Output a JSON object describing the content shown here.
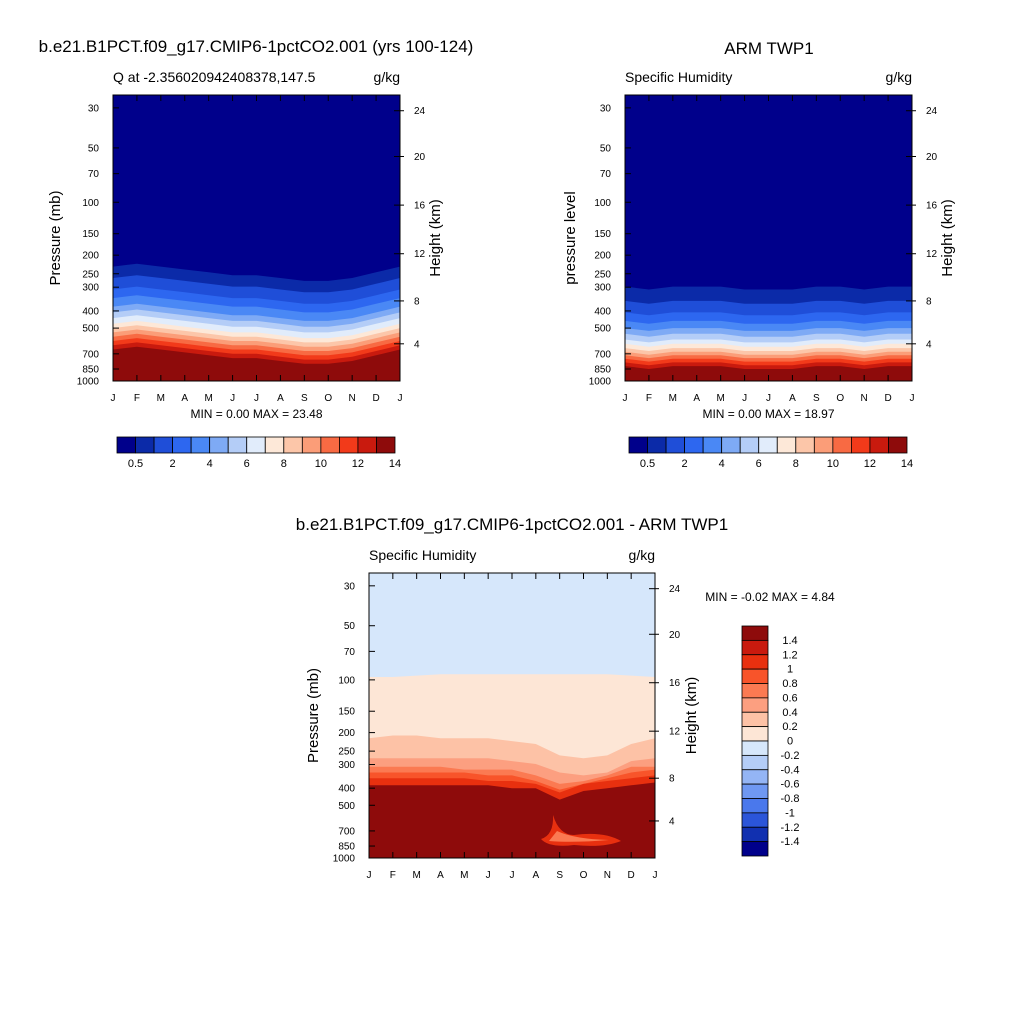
{
  "chart_data": [
    {
      "type": "heatmap",
      "title": "b.e21.B1PCT.f09_g17.CMIP6-1pctCO2.001 (yrs 100-124)",
      "subtitle_left": "Q at -2.356020942408378,147.5",
      "subtitle_right": "g/kg",
      "ylabel": "Pressure (mb)",
      "ylabel_right": "Height (km)",
      "x_ticks": [
        "J",
        "F",
        "M",
        "A",
        "M",
        "J",
        "J",
        "A",
        "S",
        "O",
        "N",
        "D",
        "J"
      ],
      "y_ticks": [
        "30",
        "50",
        "70",
        "100",
        "150",
        "200",
        "250",
        "300",
        "400",
        "500",
        "700",
        "850",
        "1000"
      ],
      "y_ticks_right": [
        "24",
        "20",
        "16",
        "12",
        "8",
        "4"
      ],
      "min_max_label": "MIN =   0.00 MAX =  23.48",
      "colorbar_labels": [
        "0.5",
        "2",
        "4",
        "6",
        "8",
        "10",
        "12",
        "14"
      ],
      "colors": [
        "#00008b",
        "#0b2aa8",
        "#1f4ed8",
        "#2d67f0",
        "#4a88f5",
        "#7eaaf5",
        "#b4cdf7",
        "#e1ecfb",
        "#fde8d8",
        "#fcc6a9",
        "#fb9d78",
        "#f86a43",
        "#f23a1a",
        "#c91a0e",
        "#8e0b0b"
      ]
    },
    {
      "type": "heatmap",
      "title": "ARM TWP1",
      "subtitle_left": "Specific Humidity",
      "subtitle_right": "g/kg",
      "ylabel": "pressure level",
      "ylabel_right": "Height (km)",
      "x_ticks": [
        "J",
        "F",
        "M",
        "A",
        "M",
        "J",
        "J",
        "A",
        "S",
        "O",
        "N",
        "D",
        "J"
      ],
      "y_ticks": [
        "30",
        "50",
        "70",
        "100",
        "150",
        "200",
        "250",
        "300",
        "400",
        "500",
        "700",
        "850",
        "1000"
      ],
      "y_ticks_right": [
        "24",
        "20",
        "16",
        "12",
        "8",
        "4"
      ],
      "min_max_label": "MIN =   0.00 MAX =  18.97",
      "colorbar_labels": [
        "0.5",
        "2",
        "4",
        "6",
        "8",
        "10",
        "12",
        "14"
      ],
      "colors": [
        "#00008b",
        "#0b2aa8",
        "#1f4ed8",
        "#2d67f0",
        "#4a88f5",
        "#7eaaf5",
        "#b4cdf7",
        "#e1ecfb",
        "#fde8d8",
        "#fcc6a9",
        "#fb9d78",
        "#f86a43",
        "#f23a1a",
        "#c91a0e",
        "#8e0b0b"
      ]
    },
    {
      "type": "heatmap",
      "title": "b.e21.B1PCT.f09_g17.CMIP6-1pctCO2.001 - ARM TWP1",
      "subtitle_left": "Specific Humidity",
      "subtitle_right": "g/kg",
      "ylabel": "Pressure (mb)",
      "ylabel_right": "Height (km)",
      "x_ticks": [
        "J",
        "F",
        "M",
        "A",
        "M",
        "J",
        "J",
        "A",
        "S",
        "O",
        "N",
        "D",
        "J"
      ],
      "y_ticks": [
        "30",
        "50",
        "70",
        "100",
        "150",
        "200",
        "250",
        "300",
        "400",
        "500",
        "700",
        "850",
        "1000"
      ],
      "y_ticks_right": [
        "24",
        "20",
        "16",
        "12",
        "8",
        "4"
      ],
      "min_max_label": "MIN =  -0.02 MAX =   4.84",
      "colorbar_labels": [
        "1.4",
        "1.2",
        "1",
        "0.8",
        "0.6",
        "0.4",
        "0.2",
        "0",
        "-0.2",
        "-0.4",
        "-0.6",
        "-0.8",
        "-1",
        "-1.2",
        "-1.4"
      ],
      "colors": [
        "#8e0b0b",
        "#c91a0e",
        "#e8300f",
        "#f8542a",
        "#fb7a52",
        "#fc9f80",
        "#fdc2a6",
        "#fde6d6",
        "#d6e7fb",
        "#b4cdf7",
        "#94b5f5",
        "#6f98f2",
        "#4a78ec",
        "#2b55d9",
        "#1130b0",
        "#00008b"
      ]
    }
  ]
}
